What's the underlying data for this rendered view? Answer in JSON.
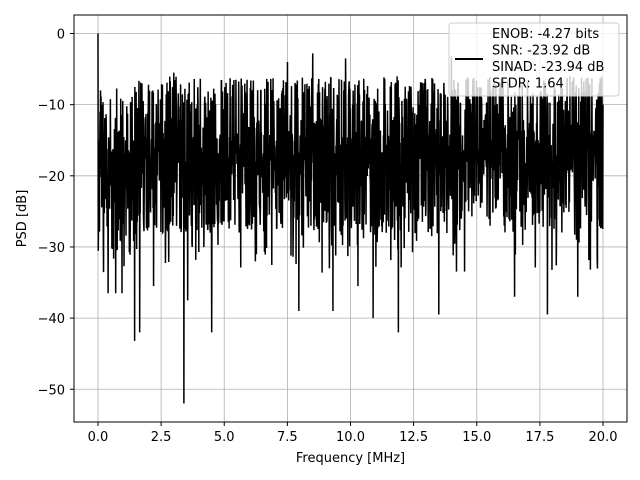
{
  "chart_data": {
    "type": "line",
    "title": "",
    "xlabel": "Frequency [MHz]",
    "ylabel": "PSD [dB]",
    "xlim": [
      -0.95,
      20.95
    ],
    "ylim": [
      -54.6,
      2.6
    ],
    "x_ticks": [
      0.0,
      2.5,
      5.0,
      7.5,
      10.0,
      12.5,
      15.0,
      17.5,
      20.0
    ],
    "x_tick_labels": [
      "0.0",
      "2.5",
      "5.0",
      "7.5",
      "10.0",
      "12.5",
      "15.0",
      "17.5",
      "20.0"
    ],
    "y_ticks": [
      0,
      -10,
      -20,
      -30,
      -40,
      -50
    ],
    "y_tick_labels": [
      "0",
      "−10",
      "−20",
      "−30",
      "−40",
      "−50"
    ],
    "grid": true,
    "legend_position": "top-right",
    "legend_text": [
      "ENOB: -4.27 bits",
      "SNR: -23.92 dB",
      "SINAD: -23.94 dB",
      "SFDR: 1.64"
    ],
    "line_color": "#000000",
    "x_range": [
      0,
      20
    ],
    "num_points": 2000,
    "notable_points": [
      {
        "x": 0.0,
        "y": 0.0
      },
      {
        "x": 0.05,
        "y": -23.0
      },
      {
        "x": 0.1,
        "y": -8.0
      },
      {
        "x": 0.4,
        "y": -36.5
      },
      {
        "x": 0.7,
        "y": -36.5
      },
      {
        "x": 0.95,
        "y": -36.5
      },
      {
        "x": 1.45,
        "y": -43.2
      },
      {
        "x": 1.65,
        "y": -42.0
      },
      {
        "x": 2.2,
        "y": -35.5
      },
      {
        "x": 3.0,
        "y": -5.5
      },
      {
        "x": 3.4,
        "y": -52.0
      },
      {
        "x": 3.55,
        "y": -37.5
      },
      {
        "x": 4.5,
        "y": -42.0
      },
      {
        "x": 7.5,
        "y": -4.0
      },
      {
        "x": 7.95,
        "y": -39.0
      },
      {
        "x": 8.5,
        "y": -2.8
      },
      {
        "x": 9.3,
        "y": -39.0
      },
      {
        "x": 9.8,
        "y": -3.5
      },
      {
        "x": 10.3,
        "y": -35.5
      },
      {
        "x": 10.9,
        "y": -40.0
      },
      {
        "x": 11.9,
        "y": -42.0
      },
      {
        "x": 13.5,
        "y": -39.5
      },
      {
        "x": 14.0,
        "y": -3.2
      },
      {
        "x": 16.5,
        "y": -37.0
      },
      {
        "x": 17.8,
        "y": -39.5
      },
      {
        "x": 19.0,
        "y": -37.0
      },
      {
        "x": 20.0,
        "y": -10.0
      }
    ]
  }
}
